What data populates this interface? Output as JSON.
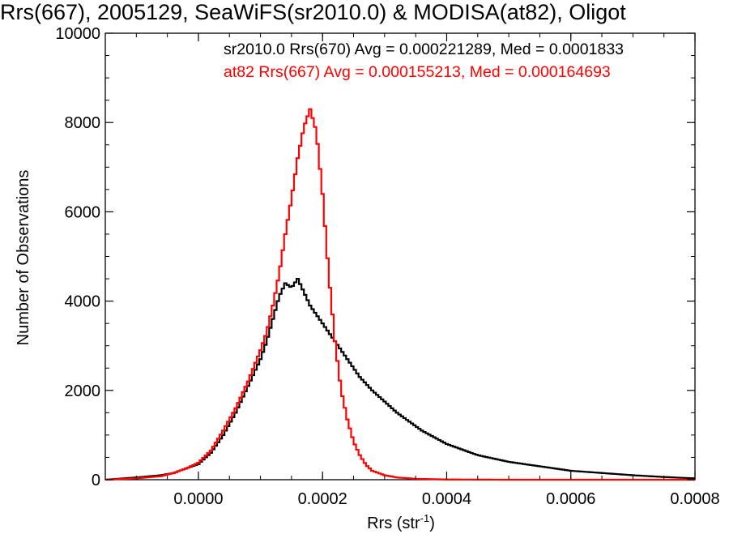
{
  "chart_data": {
    "type": "line",
    "title": "Rrs(667), 2005129, SeaWiFS(sr2010.0) & MODISA(at82), Oligot",
    "xlabel_main": "Rrs (str",
    "xlabel_sup": "-1",
    "xlabel_end": ")",
    "ylabel": "Number of Observations",
    "xlim": [
      -0.00015,
      0.0008
    ],
    "ylim": [
      0,
      10000
    ],
    "x_tick_labels": [
      "0.0000",
      "0.0002",
      "0.0004",
      "0.0006",
      "0.0008"
    ],
    "x_tick_values": [
      0.0,
      0.0002,
      0.0004,
      0.0006,
      0.0008
    ],
    "y_tick_labels": [
      "0",
      "2000",
      "4000",
      "6000",
      "8000",
      "10000"
    ],
    "y_tick_values": [
      0,
      2000,
      4000,
      6000,
      8000,
      10000
    ],
    "grid": false,
    "series": [
      {
        "name": "sr2010.0 Rrs(670)",
        "annotation": "sr2010.0 Rrs(670) Avg = 0.000221289, Med = 0.0001833",
        "color": "#000000",
        "x": [
          -0.00015,
          -0.0001,
          -6e-05,
          -4e-05,
          -2e-05,
          0.0,
          2e-05,
          4e-05,
          6e-05,
          8e-05,
          0.0001,
          0.00011,
          0.00012,
          0.00013,
          0.00014,
          0.00015,
          0.00016,
          0.00017,
          0.00018,
          0.00019,
          0.0002,
          0.00021,
          0.00022,
          0.00024,
          0.00026,
          0.00028,
          0.0003,
          0.00032,
          0.00034,
          0.00036,
          0.00038,
          0.0004,
          0.00045,
          0.0005,
          0.00055,
          0.0006,
          0.00065,
          0.0007,
          0.00075,
          0.0008
        ],
        "y": [
          0,
          50,
          100,
          150,
          250,
          350,
          600,
          1000,
          1500,
          2100,
          2700,
          3100,
          3600,
          4100,
          4400,
          4300,
          4500,
          4200,
          3900,
          3700,
          3500,
          3300,
          3100,
          2700,
          2300,
          2000,
          1750,
          1500,
          1300,
          1100,
          950,
          800,
          550,
          400,
          300,
          200,
          150,
          100,
          60,
          30
        ]
      },
      {
        "name": "at82 Rrs(667)",
        "annotation": "at82 Rrs(667) Avg = 0.000155213, Med = 0.000164693",
        "color": "#ff0000",
        "x": [
          -0.00015,
          -0.0001,
          -6e-05,
          -4e-05,
          -2e-05,
          0.0,
          2e-05,
          4e-05,
          6e-05,
          8e-05,
          0.0001,
          0.00011,
          0.00012,
          0.00013,
          0.00014,
          0.00015,
          0.00016,
          0.00017,
          0.00018,
          0.00019,
          0.0002,
          0.00021,
          0.00022,
          0.00023,
          0.00024,
          0.00025,
          0.00026,
          0.00027,
          0.00028,
          0.0003,
          0.00032,
          0.00035,
          0.0004,
          0.0005,
          0.0008
        ],
        "y": [
          0,
          30,
          80,
          150,
          250,
          380,
          650,
          1100,
          1600,
          2200,
          2900,
          3300,
          3900,
          4600,
          5500,
          6300,
          7200,
          7900,
          8300,
          7800,
          6400,
          4600,
          3100,
          2000,
          1350,
          850,
          550,
          330,
          200,
          100,
          50,
          20,
          5,
          0,
          0
        ]
      }
    ]
  }
}
